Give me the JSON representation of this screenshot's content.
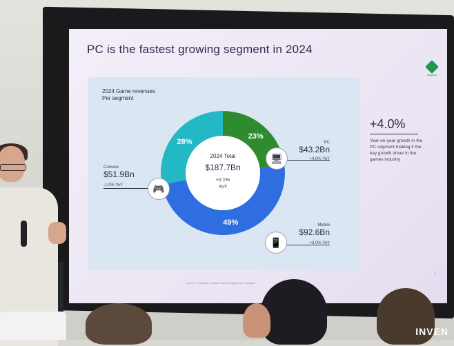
{
  "slide": {
    "title": "PC is the fastest growing segment in 2024",
    "chart_heading": "2024 Game revenues",
    "chart_subheading": "Per segment",
    "center_label": "2024 Total",
    "center_value": "$187.7Bn",
    "center_growth": "+2.1%",
    "center_growth_unit": "YoY",
    "console": {
      "name": "Console",
      "value": "$51.9Bn",
      "growth": "-1.0% YoY",
      "share": "28%"
    },
    "pc": {
      "name": "PC",
      "value": "$43.2Bn",
      "growth": "+4.0% YoY",
      "share": "23%"
    },
    "mobile": {
      "name": "Mobile",
      "value": "$92.6Bn",
      "growth": "+3.0% YoY",
      "share": "49%"
    },
    "highlight_value": "+4.0%",
    "highlight_text": "Year-on-year growth in the PC segment making it the key growth driver in the games industry",
    "footnote": "Source: ©Newzoo | Games Market Reports & Forecasts",
    "page_number": "8"
  },
  "watermark": "INVEN",
  "chart_data": {
    "type": "pie",
    "categories": [
      "PC",
      "Mobile",
      "Console"
    ],
    "values": [
      23,
      49,
      28
    ],
    "colors": [
      "#2e8b2e",
      "#2f6ee0",
      "#22b8c4"
    ],
    "title": "2024 Game revenues"
  },
  "icons": {
    "console": "gamepad-icon",
    "pc": "pc-icon",
    "mobile": "smartphone-icon"
  }
}
